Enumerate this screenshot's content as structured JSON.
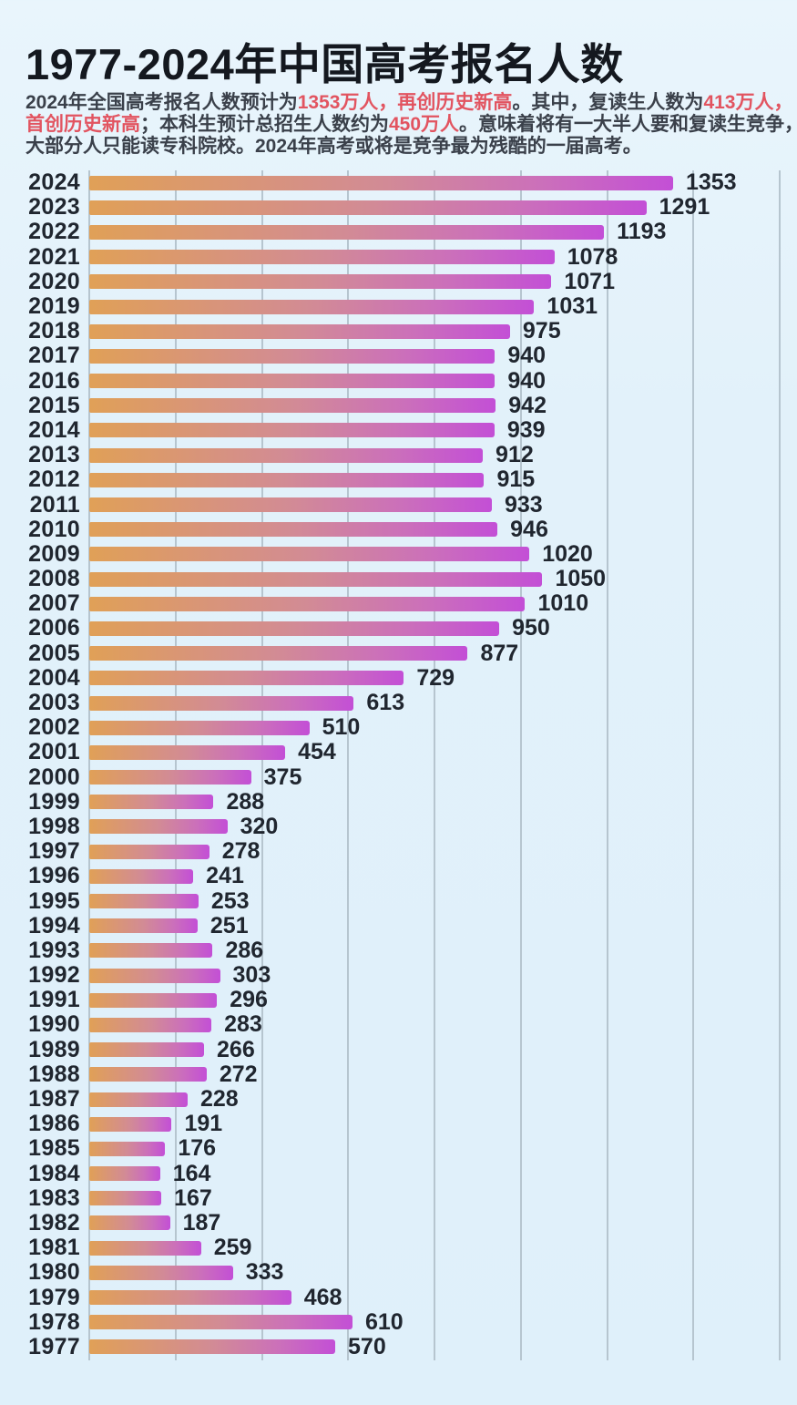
{
  "header": {
    "title": "1977-2024年中国高考报名人数"
  },
  "subtitle": {
    "lines": [
      [
        {
          "text": "2024年全国高考报名人数预计为",
          "red": false
        },
        {
          "text": "1353万人，再创历史新高",
          "red": true
        },
        {
          "text": "。其中，复读生人数为",
          "red": false
        },
        {
          "text": "413万人，",
          "red": true
        }
      ],
      [
        {
          "text": "首创历史新高",
          "red": true
        },
        {
          "text": "；本科生预计总招生人数约为",
          "red": false
        },
        {
          "text": "450万人",
          "red": true
        },
        {
          "text": "。意味着将有一大半人要和复读生竞争，",
          "red": false
        }
      ],
      [
        {
          "text": "大部分人只能读专科院校。2024年高考或将是竞争最为残酷的一届高考。",
          "red": false
        }
      ]
    ]
  },
  "colors": {
    "background": "#e2f1fa",
    "gridline": "#b6c5cf",
    "text_dark": "#20262f",
    "accent_red": "#e25460",
    "bar_gradient_start": "#e0a057",
    "bar_gradient_mid": "#d28b95",
    "bar_gradient_end": "#c34fd6"
  },
  "chart_data": {
    "type": "bar",
    "orientation": "horizontal",
    "title": "1977-2024年中国高考报名人数",
    "unit": "万人",
    "xlabel": "",
    "ylabel": "",
    "xlim": [
      0,
      1600
    ],
    "gridline_interval": 200,
    "grid": true,
    "legend": false,
    "categories": [
      "2024",
      "2023",
      "2022",
      "2021",
      "2020",
      "2019",
      "2018",
      "2017",
      "2016",
      "2015",
      "2014",
      "2013",
      "2012",
      "2011",
      "2010",
      "2009",
      "2008",
      "2007",
      "2006",
      "2005",
      "2004",
      "2003",
      "2002",
      "2001",
      "2000",
      "1999",
      "1998",
      "1997",
      "1996",
      "1995",
      "1994",
      "1993",
      "1992",
      "1991",
      "1990",
      "1989",
      "1988",
      "1987",
      "1986",
      "1985",
      "1984",
      "1983",
      "1982",
      "1981",
      "1980",
      "1979",
      "1978",
      "1977"
    ],
    "values": [
      1353,
      1291,
      1193,
      1078,
      1071,
      1031,
      975,
      940,
      940,
      942,
      939,
      912,
      915,
      933,
      946,
      1020,
      1050,
      1010,
      950,
      877,
      729,
      613,
      510,
      454,
      375,
      288,
      320,
      278,
      241,
      253,
      251,
      286,
      303,
      296,
      283,
      266,
      272,
      228,
      191,
      176,
      164,
      167,
      187,
      259,
      333,
      468,
      610,
      570
    ]
  }
}
